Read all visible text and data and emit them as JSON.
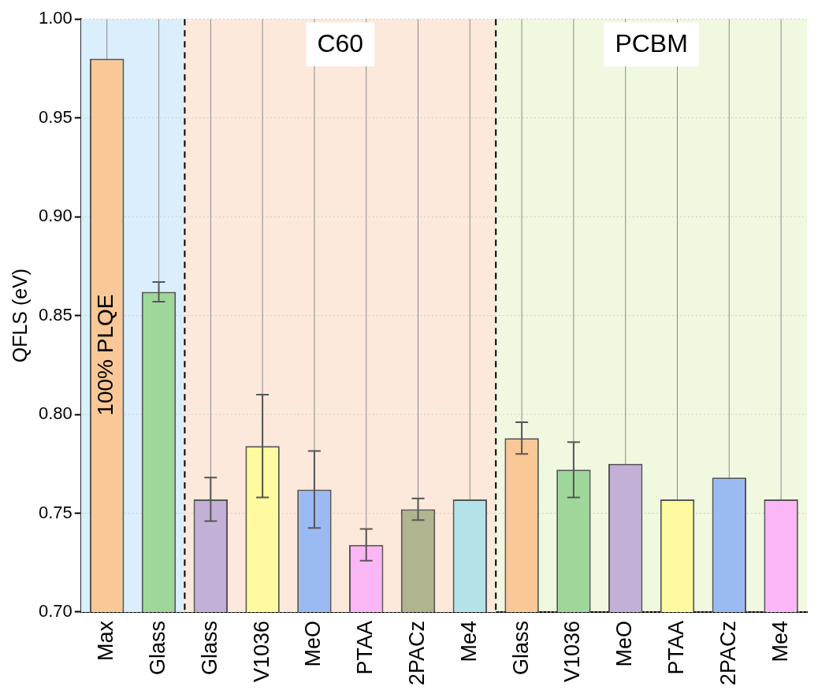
{
  "chart_data": {
    "type": "bar",
    "ylabel": "QFLS (eV)",
    "categories": [
      "Max",
      "Glass",
      "Glass",
      "V1036",
      "MeO",
      "PTAA",
      "2PACz",
      "Me4",
      "Glass",
      "V1036",
      "MeO",
      "PTAA",
      "2PACz",
      "Me4"
    ],
    "values": [
      0.98,
      0.862,
      0.757,
      0.784,
      0.762,
      0.734,
      0.752,
      0.757,
      0.788,
      0.772,
      0.775,
      0.757,
      0.768,
      0.757
    ],
    "colors": [
      "#f9c896",
      "#9fd79b",
      "#c2b0d6",
      "#fdfa9f",
      "#9bbaf2",
      "#fbb7f5",
      "#b0b58f",
      "#b3e3e8",
      "#f9c896",
      "#9fd79b",
      "#c2b0d6",
      "#fdfa9f",
      "#9bbaf2",
      "#fbb7f5"
    ],
    "errors": [
      null,
      0.005,
      0.011,
      0.026,
      0.0195,
      0.008,
      0.0055,
      null,
      0.008,
      0.014,
      null,
      null,
      null,
      null
    ],
    "ylim": [
      0.7,
      1.0
    ],
    "yticks": [
      {
        "value": 0.7,
        "label": "0.70"
      },
      {
        "value": 0.75,
        "label": "0.75"
      },
      {
        "value": 0.8,
        "label": "0.80"
      },
      {
        "value": 0.85,
        "label": "0.85"
      },
      {
        "value": 0.9,
        "label": "0.90"
      },
      {
        "value": 0.95,
        "label": "0.95"
      },
      {
        "value": 1.0,
        "label": "1.00"
      }
    ],
    "grid": true,
    "bands": [
      {
        "axis": "x",
        "from": "Max",
        "to": "Glass",
        "color": "#dbeefc"
      },
      {
        "axis": "x",
        "from": "Glass",
        "to": "Me4",
        "label": "C60",
        "color": "#fce9dc"
      }
    ],
    "annotations": [
      "100% PLQE",
      "PCBM"
    ]
  }
}
